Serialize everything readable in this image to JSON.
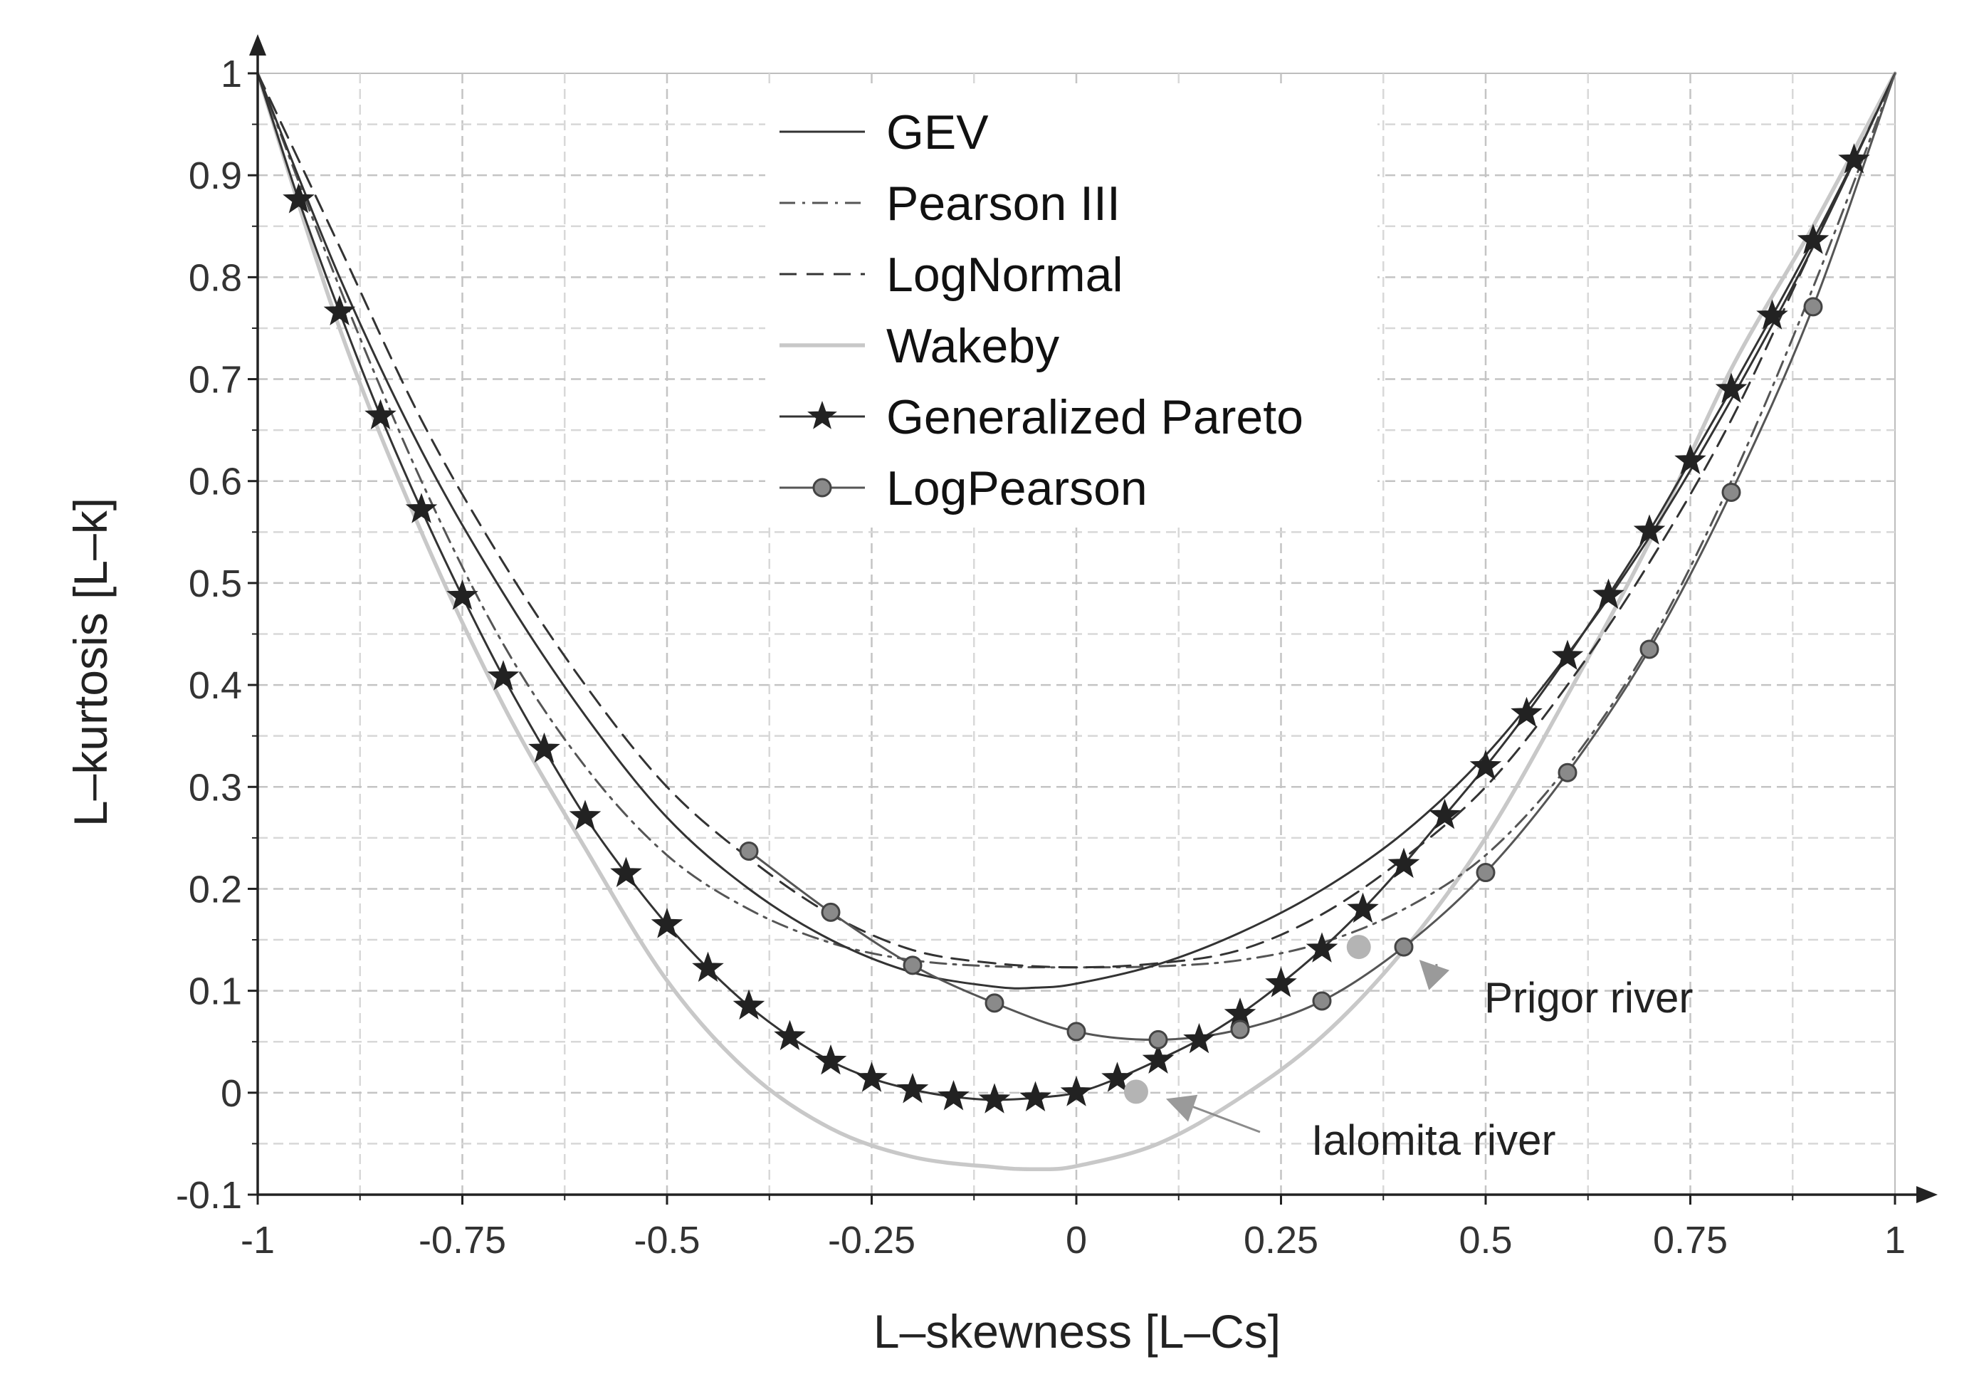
{
  "chart_data": {
    "type": "line",
    "title": "",
    "xlabel": "L–skewness [L–Cs]",
    "ylabel": "L–kurtosis [L–k]",
    "xlim": [
      -1,
      1
    ],
    "ylim": [
      -0.1,
      1
    ],
    "x_ticks": [
      -1,
      -0.75,
      -0.5,
      -0.25,
      0,
      0.25,
      0.5,
      0.75,
      1
    ],
    "x_tick_labels": [
      "-1",
      "-0.75",
      "-0.5",
      "-0.25",
      "0",
      "0.25",
      "0.5",
      "0.75",
      "1"
    ],
    "y_ticks": [
      -0.1,
      0,
      0.1,
      0.2,
      0.3,
      0.4,
      0.5,
      0.6,
      0.7,
      0.8,
      0.9,
      1
    ],
    "y_tick_labels": [
      "-0.1",
      "0",
      "0.1",
      "0.2",
      "0.3",
      "0.4",
      "0.5",
      "0.6",
      "0.7",
      "0.8",
      "0.9",
      "1"
    ],
    "grid": true,
    "legend_position": "top-center",
    "series": [
      {
        "name": "GEV",
        "style": "solid",
        "color": "#333333",
        "x": [
          -1,
          -0.9,
          -0.8,
          -0.7,
          -0.6,
          -0.5,
          -0.4,
          -0.3,
          -0.2,
          -0.1,
          -0.05,
          0,
          0.1,
          0.2,
          0.3,
          0.4,
          0.5,
          0.6,
          0.7,
          0.8,
          0.9,
          1
        ],
        "y": [
          1,
          0.8,
          0.63,
          0.49,
          0.37,
          0.27,
          0.2,
          0.15,
          0.118,
          0.104,
          0.103,
          0.107,
          0.126,
          0.157,
          0.199,
          0.255,
          0.331,
          0.43,
          0.545,
          0.68,
          0.83,
          1
        ]
      },
      {
        "name": "Pearson III",
        "style": "dashdot",
        "color": "#555555",
        "x": [
          -1,
          -0.9,
          -0.8,
          -0.7,
          -0.6,
          -0.5,
          -0.4,
          -0.3,
          -0.2,
          -0.1,
          0,
          0.1,
          0.2,
          0.3,
          0.4,
          0.5,
          0.6,
          0.7,
          0.8,
          0.9,
          1
        ],
        "y": [
          1,
          0.79,
          0.6,
          0.44,
          0.32,
          0.233,
          0.18,
          0.147,
          0.13,
          0.124,
          0.123,
          0.124,
          0.13,
          0.147,
          0.18,
          0.233,
          0.32,
          0.44,
          0.6,
          0.79,
          1
        ]
      },
      {
        "name": "LogNormal",
        "style": "dashed",
        "color": "#333333",
        "x": [
          -1,
          -0.9,
          -0.8,
          -0.7,
          -0.6,
          -0.5,
          -0.4,
          -0.3,
          -0.2,
          -0.1,
          0,
          0.1,
          0.2,
          0.3,
          0.4,
          0.5,
          0.6,
          0.7,
          0.8,
          0.9,
          1
        ],
        "y": [
          1,
          0.83,
          0.66,
          0.52,
          0.4,
          0.3,
          0.23,
          0.175,
          0.14,
          0.127,
          0.123,
          0.127,
          0.14,
          0.175,
          0.23,
          0.3,
          0.4,
          0.52,
          0.66,
          0.83,
          1
        ]
      },
      {
        "name": "Wakeby",
        "style": "solid",
        "color": "#c8c8c8",
        "x": [
          -1,
          -0.9,
          -0.8,
          -0.7,
          -0.6,
          -0.5,
          -0.4,
          -0.3,
          -0.2,
          -0.1,
          -0.05,
          0,
          0.1,
          0.2,
          0.3,
          0.4,
          0.5,
          0.6,
          0.7,
          0.8,
          0.9,
          1
        ],
        "y": [
          1,
          0.75,
          0.55,
          0.38,
          0.24,
          0.11,
          0.02,
          -0.035,
          -0.063,
          -0.073,
          -0.075,
          -0.072,
          -0.05,
          -0.005,
          0.055,
          0.14,
          0.25,
          0.39,
          0.54,
          0.71,
          0.85,
          1
        ]
      },
      {
        "name": "Generalized Pareto",
        "style": "solid-star",
        "color": "#333333",
        "x": [
          -1,
          -0.95,
          -0.9,
          -0.85,
          -0.8,
          -0.75,
          -0.7,
          -0.65,
          -0.6,
          -0.55,
          -0.5,
          -0.45,
          -0.4,
          -0.35,
          -0.3,
          -0.25,
          -0.2,
          -0.15,
          -0.1,
          -0.05,
          0,
          0.05,
          0.1,
          0.15,
          0.2,
          0.25,
          0.3,
          0.35,
          0.4,
          0.45,
          0.5,
          0.55,
          0.6,
          0.65,
          0.7,
          0.75,
          0.8,
          0.85,
          0.9,
          0.95,
          1
        ],
        "y": [
          1,
          0.876,
          0.766,
          0.664,
          0.572,
          0.487,
          0.408,
          0.337,
          0.271,
          0.215,
          0.165,
          0.122,
          0.085,
          0.055,
          0.031,
          0.014,
          0.003,
          -0.004,
          -0.007,
          -0.005,
          0,
          0.014,
          0.032,
          0.052,
          0.077,
          0.107,
          0.141,
          0.18,
          0.224,
          0.272,
          0.32,
          0.372,
          0.428,
          0.488,
          0.551,
          0.62,
          0.69,
          0.762,
          0.836,
          0.915,
          1
        ]
      },
      {
        "name": "LogPearson",
        "style": "solid-circle",
        "color": "#555555",
        "x": [
          -0.4,
          -0.3,
          -0.2,
          -0.1,
          0,
          0.1,
          0.2,
          0.3,
          0.4,
          0.5,
          0.6,
          0.7,
          0.8,
          0.9,
          1
        ],
        "y": [
          0.237,
          0.177,
          0.125,
          0.088,
          0.06,
          0.052,
          0.062,
          0.09,
          0.143,
          0.216,
          0.314,
          0.435,
          0.589,
          0.771,
          1
        ]
      }
    ],
    "annotations": [
      {
        "text": "Prigor river",
        "x": 0.345,
        "y": 0.143
      },
      {
        "text": "Ialomita river",
        "x": 0.073,
        "y": 0.001
      }
    ]
  }
}
